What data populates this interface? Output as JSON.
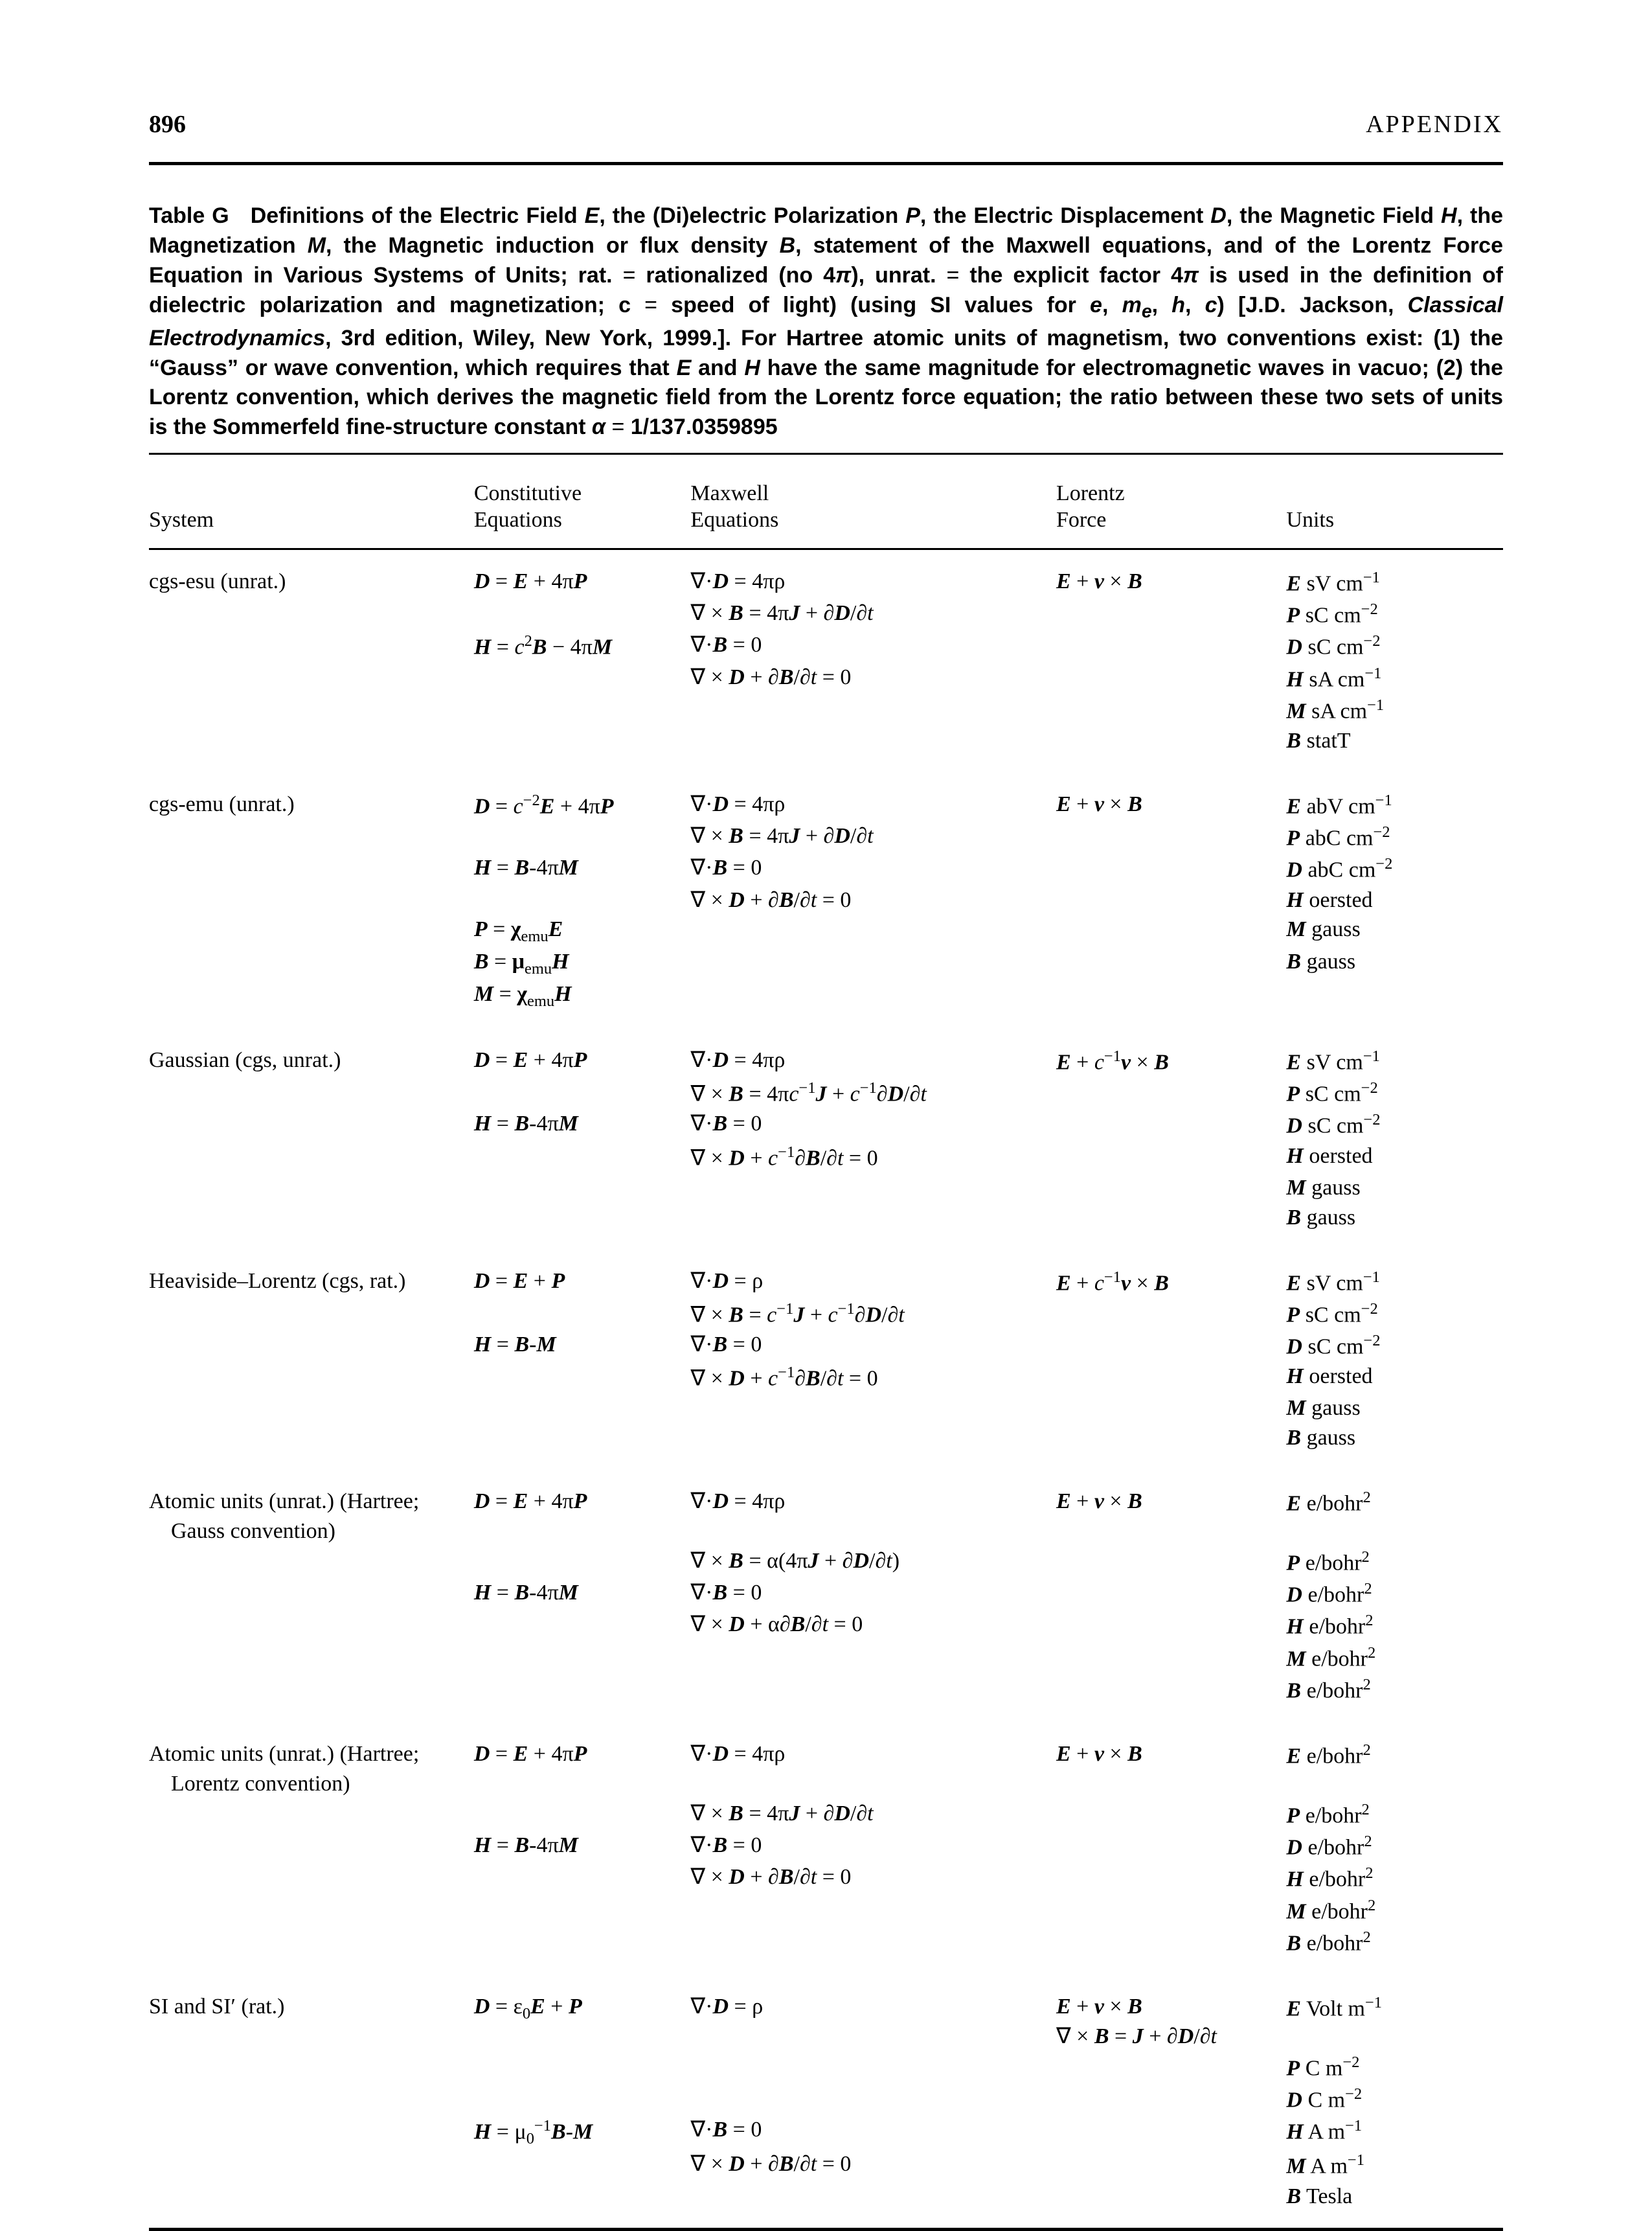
{
  "page_number": "896",
  "appendix_label": "APPENDIX",
  "colors": {
    "text": "#000000",
    "background": "#ffffff",
    "rule": "#000000"
  },
  "fonts": {
    "body": "Times New Roman",
    "caption": "Arial",
    "body_size_pt": 34,
    "caption_size_pt": 34,
    "header_size_pt": 38
  },
  "caption": {
    "prefix": "Table G",
    "body_html": "   Definitions of the Electric Field <span class='ital'>E</span>, the (Di)electric Polarization <span class='ital'>P</span>, the Electric Displacement <span class='ital'>D</span>, the Magnetic Field <span class='ital'>H</span>, the Magnetization <span class='ital'>M</span>, the Magnetic induction or flux density <span class='ital'>B</span>, statement of the Maxwell equations, and of the Lorentz Force Equation in Various Systems of Units; rat. <span class='light'>=</span> rationalized (no 4<span class='ital'>&pi;</span>), unrat. <span class='light'>=</span> the explicit factor 4<span class='ital'>&pi;</span> is used in the definition of dielectric polarization and magnetization; c <span class='light'>=</span> speed of light) (using SI values for <span class='ital'>e</span>, <span class='ital'>m<sub>e</sub></span>, <span class='ital'>h</span>, <span class='ital'>c</span>) [J.D. Jackson, <span class='ital'>Classical Electrodynamics</span>, 3rd edition, Wiley, New York, 1999.]. For Hartree atomic units of magnetism, two conventions exist: (1) the &ldquo;Gauss&rdquo; or wave convention, which requires that <span class='ital'>E</span> and <span class='ital'>H</span> have the same magnitude for electromagnetic waves in vacuo; (2) the Lorentz convention, which derives the magnetic field from the Lorentz force equation; the ratio between these two sets of units is the Sommerfeld fine-structure constant <span class='ital'>&alpha;</span> <span class='light'>=</span> 1/137.0359895"
  },
  "columns": [
    {
      "key": "system",
      "header_html": "System"
    },
    {
      "key": "constitutive",
      "header_html": "Constitutive<br>Equations"
    },
    {
      "key": "maxwell",
      "header_html": "Maxwell<br>Equations"
    },
    {
      "key": "lorentz",
      "header_html": "Lorentz<br>Force"
    },
    {
      "key": "units",
      "header_html": "Units"
    }
  ],
  "systems": [
    {
      "name_html": "cgs-esu (unrat.)",
      "constitutive_html": [
        "<span class='bi'>D</span> = <span class='bi'>E</span> + 4&pi;<span class='bi'>P</span>",
        "",
        "<span class='bi'>H</span> = <i>c</i><span class='sup'>2</span><span class='bi'>B</span> &minus; 4&pi;<span class='bi'>M</span>"
      ],
      "maxwell_html": [
        "&nabla;&middot;<span class='bi'>D</span> = 4&pi;&rho;",
        "&nabla; &times; <span class='bi'>B</span> = 4&pi;<span class='bi'>J</span> + &part;<span class='bi'>D</span>/&part;<i>t</i>",
        "&nabla;&middot;<span class='bi'>B</span> = 0",
        "&nabla; &times; <span class='bi'>D</span> + &part;<span class='bi'>B</span>/&part;<i>t</i> = 0"
      ],
      "lorentz_html": "<span class='bi'>E</span> + <span class='bi'>v</span> &times; <span class='bi'>B</span>",
      "units_html": [
        "<span class='bi'>E</span> sV cm<span class='sup'>&minus;1</span>",
        "<span class='bi'>P</span> sC cm<span class='sup'>&minus;2</span>",
        "<span class='bi'>D</span> sC cm<span class='sup'>&minus;2</span>",
        "<span class='bi'>H</span> sA cm<span class='sup'>&minus;1</span>",
        "<span class='bi'>M</span> sA cm<span class='sup'>&minus;1</span>",
        "<span class='bi'>B</span> statT"
      ]
    },
    {
      "name_html": "cgs-emu (unrat.)",
      "constitutive_html": [
        "<span class='bi'>D</span> = <i>c</i><span class='sup'>&minus;2</span><span class='bi'>E</span> + 4&pi;<span class='bi'>P</span>",
        "",
        "<span class='bi'>H</span> = <span class='bi'>B</span>-4&pi;<span class='bi'>M</span>",
        "",
        "<span class='bi'>P</span> = <b>&chi;</b><span class='sub'>emu</span><span class='bi'>E</span>",
        "<span class='bi'>B</span> = <b>&mu;</b><span class='sub'>emu</span><span class='bi'>H</span>",
        "<span class='bi'>M</span> = <b>&chi;</b><span class='sub'>emu</span><span class='bi'>H</span>"
      ],
      "maxwell_html": [
        "&nabla;&middot;<span class='bi'>D</span> = 4&pi;&rho;",
        "&nabla; &times; <span class='bi'>B</span> = 4&pi;<span class='bi'>J</span> + &part;<span class='bi'>D</span>/&part;<i>t</i>",
        "&nabla;&middot;<span class='bi'>B</span> = 0",
        "&nabla; &times; <span class='bi'>D</span> + &part;<span class='bi'>B</span>/&part;<i>t</i> = 0"
      ],
      "lorentz_html": "<span class='bi'>E</span> + <span class='bi'>v</span> &times; <span class='bi'>B</span>",
      "units_html": [
        "<span class='bi'>E</span> abV cm<span class='sup'>&minus;1</span>",
        "<span class='bi'>P</span> abC cm<span class='sup'>&minus;2</span>",
        "<span class='bi'>D</span> abC cm<span class='sup'>&minus;2</span>",
        "<span class='bi'>H</span> oersted",
        "<span class='bi'>M</span> gauss",
        "<span class='bi'>B</span> gauss"
      ]
    },
    {
      "name_html": "Gaussian (cgs, unrat.)",
      "constitutive_html": [
        "<span class='bi'>D</span> = <span class='bi'>E</span> + 4&pi;<span class='bi'>P</span>",
        "",
        "<span class='bi'>H</span> = <span class='bi'>B</span>-4&pi;<span class='bi'>M</span>"
      ],
      "maxwell_html": [
        "&nabla;&middot;<span class='bi'>D</span> = 4&pi;&rho;",
        "&nabla; &times; <span class='bi'>B</span> = 4&pi;<i>c</i><span class='sup'>&minus;1</span><span class='bi'>J</span> + <i>c</i><span class='sup'>&minus;1</span>&part;<span class='bi'>D</span>/&part;<i>t</i>",
        "&nabla;&middot;<span class='bi'>B</span> = 0",
        "&nabla; &times; <span class='bi'>D</span> + <i>c</i><span class='sup'>&minus;1</span>&part;<span class='bi'>B</span>/&part;<i>t</i> = 0"
      ],
      "lorentz_html": "<span class='bi'>E</span> + <i>c</i><span class='sup'>&minus;1</span><span class='bi'>v</span> &times; <span class='bi'>B</span>",
      "units_html": [
        "<span class='bi'>E</span> sV cm<span class='sup'>&minus;1</span>",
        "<span class='bi'>P</span> sC cm<span class='sup'>&minus;2</span>",
        "<span class='bi'>D</span> sC cm<span class='sup'>&minus;2</span>",
        "<span class='bi'>H</span> oersted",
        "<span class='bi'>M</span> gauss",
        "<span class='bi'>B</span> gauss"
      ]
    },
    {
      "name_html": "Heaviside&ndash;Lorentz (cgs, rat.)",
      "constitutive_html": [
        "<span class='bi'>D</span> = <span class='bi'>E</span> + <span class='bi'>P</span>",
        "",
        "<span class='bi'>H</span> = <span class='bi'>B</span>-<span class='bi'>M</span>"
      ],
      "maxwell_html": [
        "&nabla;&middot;<span class='bi'>D</span> = &rho;",
        "&nabla; &times; <span class='bi'>B</span> = <i>c</i><span class='sup'>&minus;1</span><span class='bi'>J</span> + <i>c</i><span class='sup'>&minus;1</span>&part;<span class='bi'>D</span>/&part;<i>t</i>",
        "&nabla;&middot;<span class='bi'>B</span> = 0",
        "&nabla; &times; <span class='bi'>D</span> + <i>c</i><span class='sup'>&minus;1</span>&part;<span class='bi'>B</span>/&part;<i>t</i> = 0"
      ],
      "lorentz_html": "<span class='bi'>E</span> + <i>c</i><span class='sup'>&minus;1</span><span class='bi'>v</span> &times; <span class='bi'>B</span>",
      "units_html": [
        "<span class='bi'>E</span> sV cm<span class='sup'>&minus;1</span>",
        "<span class='bi'>P</span> sC cm<span class='sup'>&minus;2</span>",
        "<span class='bi'>D</span> sC cm<span class='sup'>&minus;2</span>",
        "<span class='bi'>H</span> oersted",
        "<span class='bi'>M</span> gauss",
        "<span class='bi'>B</span> gauss"
      ]
    },
    {
      "name_html": "Atomic units (unrat.) (Hartree;<br>&nbsp;&nbsp;&nbsp;&nbsp;Gauss convention)",
      "constitutive_html": [
        "<span class='bi'>D</span> = <span class='bi'>E</span> + 4&pi;<span class='bi'>P</span>",
        "",
        "<span class='bi'>H</span> = <span class='bi'>B</span>-4&pi;<span class='bi'>M</span>"
      ],
      "maxwell_html": [
        "&nabla;&middot;<span class='bi'>D</span> = 4&pi;&rho;",
        "&nabla; &times; <span class='bi'>B</span> = &alpha;(4&pi;<span class='bi'>J</span> + &part;<span class='bi'>D</span>/&part;<i>t</i>)",
        "&nabla;&middot;<span class='bi'>B</span> = 0",
        "&nabla; &times; <span class='bi'>D</span> + &alpha;&part;<span class='bi'>B</span>/&part;<i>t</i> = 0"
      ],
      "lorentz_html": "<span class='bi'>E</span> + <span class='bi'>v</span> &times; <span class='bi'>B</span>",
      "units_html": [
        "<span class='bi'>E</span> e/bohr<span class='sup'>2</span>",
        "<span class='bi'>P</span> e/bohr<span class='sup'>2</span>",
        "<span class='bi'>D</span> e/bohr<span class='sup'>2</span>",
        "<span class='bi'>H</span> e/bohr<span class='sup'>2</span>",
        "<span class='bi'>M</span> e/bohr<span class='sup'>2</span>",
        "<span class='bi'>B</span> e/bohr<span class='sup'>2</span>"
      ]
    },
    {
      "name_html": "Atomic units (unrat.) (Hartree;<br>&nbsp;&nbsp;&nbsp;&nbsp;Lorentz convention)",
      "constitutive_html": [
        "<span class='bi'>D</span> = <span class='bi'>E</span> + 4&pi;<span class='bi'>P</span>",
        "",
        "<span class='bi'>H</span> = <span class='bi'>B</span>-4&pi;<span class='bi'>M</span>"
      ],
      "maxwell_html": [
        "&nabla;&middot;<span class='bi'>D</span> = 4&pi;&rho;",
        "&nabla; &times; <span class='bi'>B</span> = 4&pi;<span class='bi'>J</span> + &part;<span class='bi'>D</span>/&part;<i>t</i>",
        "&nabla;&middot;<span class='bi'>B</span> = 0",
        "&nabla; &times; <span class='bi'>D</span> + &part;<span class='bi'>B</span>/&part;<i>t</i> = 0"
      ],
      "lorentz_html": "<span class='bi'>E</span> + <span class='bi'>v</span> &times; <span class='bi'>B</span>",
      "units_html": [
        "<span class='bi'>E</span> e/bohr<span class='sup'>2</span>",
        "<span class='bi'>P</span> e/bohr<span class='sup'>2</span>",
        "<span class='bi'>D</span> e/bohr<span class='sup'>2</span>",
        "<span class='bi'>H</span> e/bohr<span class='sup'>2</span>",
        "<span class='bi'>M</span> e/bohr<span class='sup'>2</span>",
        "<span class='bi'>B</span> e/bohr<span class='sup'>2</span>"
      ]
    },
    {
      "name_html": "SI and SI&prime; (rat.)",
      "constitutive_html": [
        "<span class='bi'>D</span> = &epsilon;<span class='sub'>0</span><span class='bi'>E</span> + <span class='bi'>P</span>",
        "",
        "",
        "<span class='bi'>H</span> = &mu;<span class='sub'>0</span><span class='sup'>&minus;1</span><span class='bi'>B</span>-<span class='bi'>M</span>"
      ],
      "maxwell_html": [
        "&nabla;&middot;<span class='bi'>D</span> = &rho;",
        "",
        "",
        "&nabla;&middot;<span class='bi'>B</span> = 0",
        "&nabla; &times; <span class='bi'>D</span> + &part;<span class='bi'>B</span>/&part;<i>t</i> = 0"
      ],
      "lorentz_html": "<span class='bi'>E</span> + <span class='bi'>v</span> &times; <span class='bi'>B</span><br>&nabla; &times; <span class='bi'>B</span> = <span class='bi'>J</span> + &part;<span class='bi'>D</span>/&part;<i>t</i>",
      "units_html": [
        "<span class='bi'>E</span> Volt m<span class='sup'>&minus;1</span>",
        "<span class='bi'>P</span> C m<span class='sup'>&minus;2</span>",
        "<span class='bi'>D</span> C m<span class='sup'>&minus;2</span>",
        "<span class='bi'>H</span> A m<span class='sup'>&minus;1</span>",
        "<span class='bi'>M</span> A m<span class='sup'>&minus;1</span>",
        "<span class='bi'>B</span> Tesla"
      ]
    }
  ]
}
